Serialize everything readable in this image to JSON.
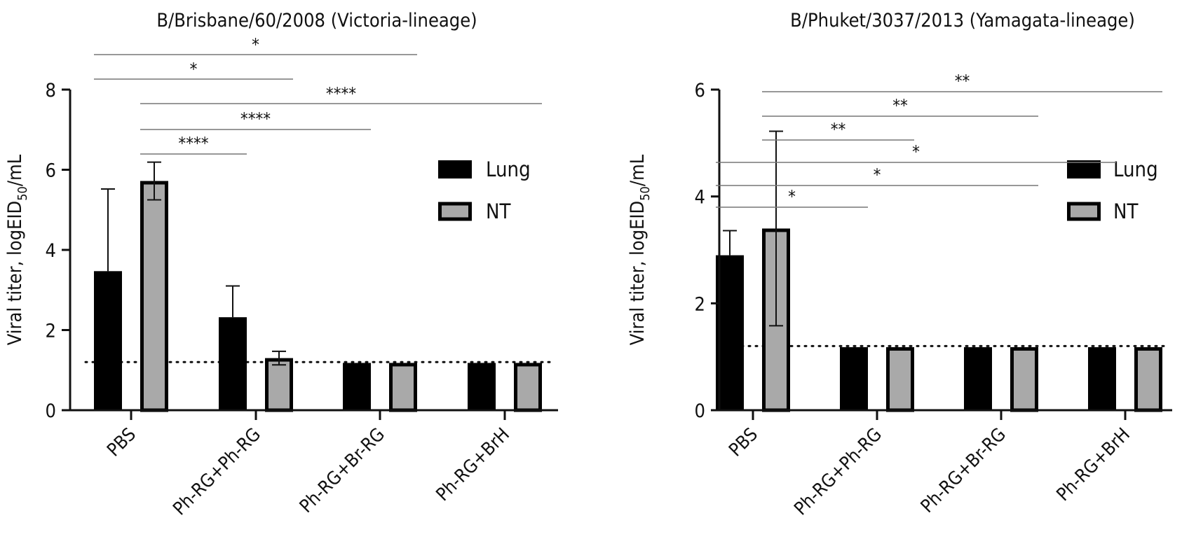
{
  "chart_data": [
    {
      "type": "bar",
      "title": "B/Brisbane/60/2008 (Victoria-lineage)",
      "ylabel_main": "Viral titer, logEID",
      "ylabel_sub": "50",
      "ylabel_tail": "/mL",
      "categories": [
        "PBS",
        "Ph-RG+Ph-RG",
        "Ph-RG+Br-RG",
        "Ph-RG+BrH"
      ],
      "series": [
        {
          "name": "Lung",
          "color": "#000000",
          "values": [
            3.47,
            2.32,
            1.18,
            1.18
          ],
          "errors": [
            2.05,
            0.78,
            0,
            0
          ]
        },
        {
          "name": "NT",
          "color": "#a9a9a9",
          "values": [
            5.72,
            1.3,
            1.18,
            1.18
          ],
          "errors": [
            0.47,
            0.17,
            0,
            0
          ]
        }
      ],
      "ylim": [
        0,
        8
      ],
      "yticks": [
        "0",
        "2",
        "4",
        "6",
        "8"
      ],
      "detection_limit": 1.2,
      "legend": "top-right",
      "significance": [
        {
          "label": "*",
          "from": "PBS Lung",
          "to": "Ph-RG+Br-RG NT"
        },
        {
          "label": "*",
          "from": "PBS Lung",
          "to": "Ph-RG+Ph-RG NT"
        },
        {
          "label": "****",
          "from": "PBS NT",
          "to": "Ph-RG+BrH NT"
        },
        {
          "label": "****",
          "from": "PBS NT",
          "to": "Ph-RG+Br-RG Lung"
        },
        {
          "label": "****",
          "from": "PBS NT",
          "to": "Ph-RG+Ph-RG Lung"
        }
      ]
    },
    {
      "type": "bar",
      "title": "B/Phuket/3037/2013 (Yamagata-lineage)",
      "ylabel_main": "Viral titer, logEID",
      "ylabel_sub": "50",
      "ylabel_tail": "/mL",
      "categories": [
        "PBS",
        "Ph-RG+Ph-RG",
        "Ph-RG+Br-RG",
        "Ph-RG+BrH"
      ],
      "series": [
        {
          "name": "Lung",
          "color": "#000000",
          "values": [
            2.9,
            1.18,
            1.18,
            1.18
          ],
          "errors": [
            0.46,
            0,
            0,
            0
          ]
        },
        {
          "name": "NT",
          "color": "#a9a9a9",
          "values": [
            3.4,
            1.18,
            1.18,
            1.18
          ],
          "errors": [
            1.82,
            0,
            0,
            0
          ]
        }
      ],
      "ylim": [
        0,
        6
      ],
      "yticks": [
        "0",
        "2",
        "4",
        "6"
      ],
      "detection_limit": 1.2,
      "legend": "top-right",
      "significance": [
        {
          "label": "**",
          "from": "PBS NT",
          "to": "Ph-RG+BrH NT"
        },
        {
          "label": "**",
          "from": "PBS NT",
          "to": "Ph-RG+Br-RG NT"
        },
        {
          "label": "**",
          "from": "PBS NT",
          "to": "Ph-RG+Ph-RG NT"
        },
        {
          "label": "*",
          "from": "PBS Lung",
          "to": "Ph-RG+BrH Lung"
        },
        {
          "label": "*",
          "from": "PBS Lung",
          "to": "Ph-RG+Br-RG NT"
        },
        {
          "label": "*",
          "from": "PBS Lung",
          "to": "Ph-RG+Ph-RG Lung"
        }
      ]
    }
  ]
}
